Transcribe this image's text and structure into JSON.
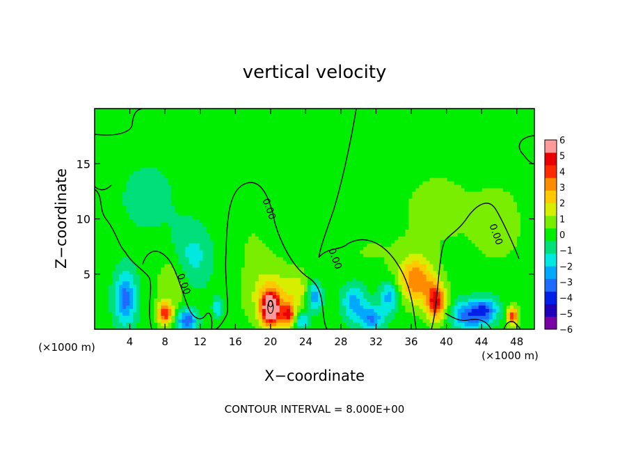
{
  "chart_data": {
    "type": "heatmap",
    "title": "vertical velocity",
    "xlabel": "X−coordinate",
    "ylabel": "Z−coordinate",
    "x_unit_left": "(×1000 m)",
    "x_unit_right": "(×1000 m)",
    "footer": "CONTOUR INTERVAL = 8.000E+00",
    "xlim": [
      0,
      50
    ],
    "ylim": [
      0,
      20
    ],
    "x_ticks": [
      4,
      8,
      12,
      16,
      20,
      24,
      28,
      32,
      36,
      40,
      44,
      48
    ],
    "x_tick_labels": [
      "4",
      "8",
      "12",
      "16",
      "20",
      "24",
      "28",
      "32",
      "36",
      "40",
      "44",
      "48"
    ],
    "y_ticks": [
      5,
      10,
      15
    ],
    "y_tick_labels": [
      "5",
      "10",
      "15"
    ],
    "contour_labels": [
      {
        "text": "0.00",
        "x": 19.5,
        "y": 10.8
      },
      {
        "text": "0.00",
        "x": 9.8,
        "y": 4.0
      },
      {
        "text": "0.00",
        "x": 27,
        "y": 6.3
      },
      {
        "text": "0.00",
        "x": 45.3,
        "y": 8.5
      },
      {
        "text": "0",
        "x": 20.0,
        "y": 2.0
      }
    ],
    "colorbar": {
      "min": -6,
      "max": 6,
      "labels": [
        "6",
        "5",
        "4",
        "3",
        "2",
        "1",
        "0",
        "−1",
        "−2",
        "−3",
        "−4",
        "−5",
        "−6"
      ],
      "colors": [
        "#7a00a8",
        "#2000b8",
        "#0020e8",
        "#1e6bff",
        "#00a8ff",
        "#00e8e0",
        "#00e07a",
        "#00ee00",
        "#7aee00",
        "#d8ee00",
        "#ffc800",
        "#ff8c00",
        "#ff2a00",
        "#e80000",
        "#ff9a9a"
      ]
    },
    "blobs": [
      {
        "x": 3.5,
        "y": 2.8,
        "sx": 0.9,
        "sy": 1.7,
        "v": -3.2
      },
      {
        "x": 8.0,
        "y": 1.5,
        "sx": 0.6,
        "sy": 0.7,
        "v": 4.2
      },
      {
        "x": 9.0,
        "y": 4.5,
        "sx": 1.3,
        "sy": 2.0,
        "v": 1.2
      },
      {
        "x": 10.5,
        "y": 0.8,
        "sx": 0.8,
        "sy": 0.7,
        "v": -3.6
      },
      {
        "x": 11.0,
        "y": 6.5,
        "sx": 1.6,
        "sy": 2.0,
        "v": -1.6
      },
      {
        "x": 14.0,
        "y": 2.0,
        "sx": 0.4,
        "sy": 0.7,
        "v": -1.8
      },
      {
        "x": 6.0,
        "y": 12.0,
        "sx": 3.0,
        "sy": 3.0,
        "v": -0.6
      },
      {
        "x": 20.0,
        "y": 1.9,
        "sx": 0.7,
        "sy": 1.0,
        "v": 6.8
      },
      {
        "x": 20.0,
        "y": 3.0,
        "sx": 1.8,
        "sy": 1.9,
        "v": 1.9
      },
      {
        "x": 22.0,
        "y": 1.3,
        "sx": 0.6,
        "sy": 0.7,
        "v": 4.0
      },
      {
        "x": 23.0,
        "y": 3.5,
        "sx": 1.0,
        "sy": 1.2,
        "v": 1.4
      },
      {
        "x": 25.0,
        "y": 3.0,
        "sx": 0.6,
        "sy": 0.9,
        "v": -2.8
      },
      {
        "x": 23.5,
        "y": 0.8,
        "sx": 0.6,
        "sy": 0.6,
        "v": -2.2
      },
      {
        "x": 18.0,
        "y": 8.0,
        "sx": 2.0,
        "sy": 3.0,
        "v": 0.4
      },
      {
        "x": 29.5,
        "y": 2.5,
        "sx": 1.0,
        "sy": 1.2,
        "v": -2.4
      },
      {
        "x": 31.5,
        "y": 1.0,
        "sx": 1.0,
        "sy": 0.8,
        "v": -2.8
      },
      {
        "x": 33.5,
        "y": 3.0,
        "sx": 0.8,
        "sy": 1.0,
        "v": -2.5
      },
      {
        "x": 36.5,
        "y": 4.5,
        "sx": 1.4,
        "sy": 1.5,
        "v": 3.4
      },
      {
        "x": 38.8,
        "y": 2.5,
        "sx": 0.8,
        "sy": 1.2,
        "v": 4.6
      },
      {
        "x": 42.5,
        "y": 1.3,
        "sx": 1.4,
        "sy": 0.9,
        "v": -3.2
      },
      {
        "x": 44.5,
        "y": 1.8,
        "sx": 1.0,
        "sy": 0.8,
        "v": -2.8
      },
      {
        "x": 47.5,
        "y": 1.2,
        "sx": 0.45,
        "sy": 0.6,
        "v": 4.0
      },
      {
        "x": 39.0,
        "y": 11.0,
        "sx": 3.5,
        "sy": 3.0,
        "v": 0.6
      },
      {
        "x": 46.0,
        "y": 9.5,
        "sx": 2.0,
        "sy": 2.5,
        "v": 0.8
      },
      {
        "x": 31.0,
        "y": 7.0,
        "sx": 3.0,
        "sy": 2.0,
        "v": 0.4
      }
    ]
  }
}
